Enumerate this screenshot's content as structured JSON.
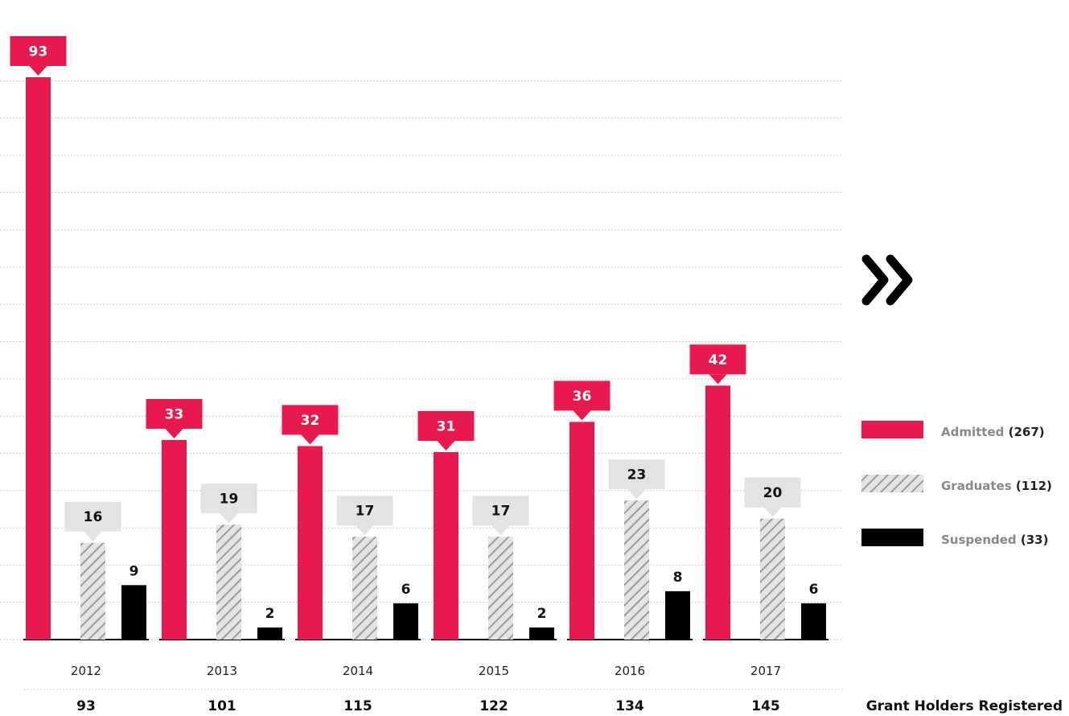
{
  "colors": {
    "admitted": "#E8194E",
    "graduates_bg": "#e4e4e4",
    "graduates_stripe": "#9a9a9a",
    "suspended": "#000000",
    "callout_grey": "#e3e3e3",
    "legend_label": "#888888",
    "gridline": "#bdbdbd"
  },
  "chart_data": {
    "type": "bar",
    "categories": [
      "2012",
      "2013",
      "2014",
      "2015",
      "2016",
      "2017"
    ],
    "series": [
      {
        "name": "Admitted",
        "values": [
          93,
          33,
          32,
          31,
          36,
          42
        ]
      },
      {
        "name": "Graduates",
        "values": [
          16,
          19,
          17,
          17,
          23,
          20
        ]
      },
      {
        "name": "Suspended",
        "values": [
          9,
          2,
          6,
          2,
          8,
          6
        ]
      }
    ],
    "totals": {
      "label": "Grant Holders Registered",
      "values": [
        "93",
        "101",
        "115",
        "122",
        "134",
        "145"
      ]
    },
    "legend": [
      {
        "label": "Admitted",
        "count": "(267)"
      },
      {
        "label": "Graduates",
        "count": "(112)"
      },
      {
        "label": "Suspended",
        "count": "(33)"
      }
    ],
    "legend_icon": "double-chevron-right-icon",
    "grid": true
  }
}
